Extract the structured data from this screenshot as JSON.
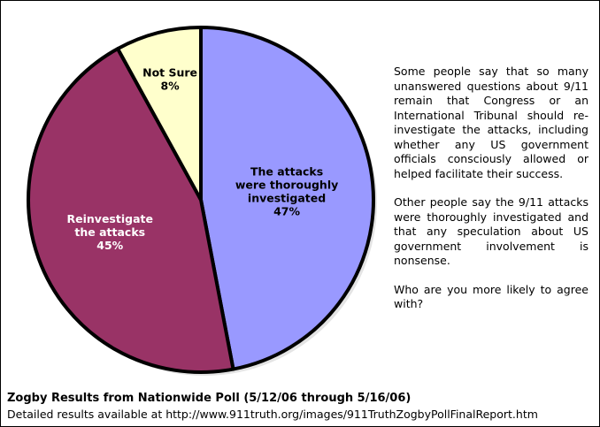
{
  "chart_data": {
    "type": "pie",
    "title": "Zogby Results from Nationwide Poll (5/12/06 through 5/16/06)",
    "caption": "Detailed results available at http://www.911truth.org/images/911TruthZogbyPollFinalReport.htm",
    "categories": [
      "The attacks\nwere thoroughly\ninvestigated",
      "Reinvestigate\nthe attacks",
      "Not Sure"
    ],
    "values": [
      47,
      45,
      8
    ],
    "value_labels": [
      "47%",
      "45%",
      "8%"
    ],
    "colors": [
      "#9999ff",
      "#993366",
      "#ffffcc"
    ],
    "label_colors": [
      "#000000",
      "#ffffff",
      "#000000"
    ],
    "annotations": [
      "Some people say that so many unanswered questions about 9/11 remain that Congress or an International Tribunal should re-investigate the attacks, including whether any US government officials consciously allowed or helped facilitate their success.",
      "Other people say the 9/11 attacks were thoroughly investigated and that any speculation about US government involvement is nonsense.",
      "Who are you more likely to agree with?"
    ]
  }
}
